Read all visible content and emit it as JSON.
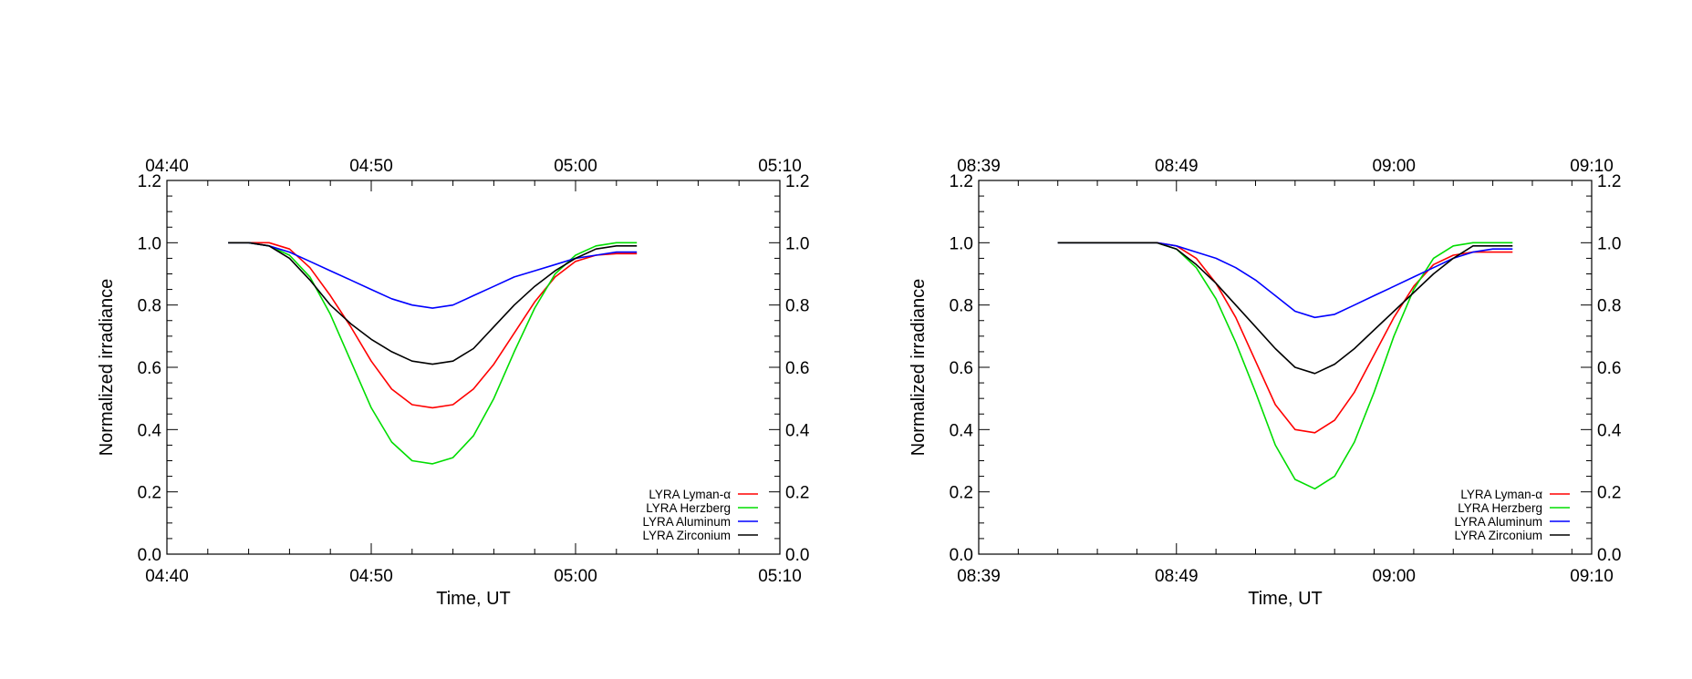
{
  "chart_data": [
    {
      "type": "line",
      "xlabel": "Time, UT",
      "ylabel": "Normalized irradiance",
      "xlim": [
        "04:40",
        "05:10"
      ],
      "ylim": [
        0.0,
        1.2
      ],
      "xticks": [
        "04:40",
        "04:50",
        "05:00",
        "05:10"
      ],
      "yticks": [
        "0.0",
        "0.2",
        "0.4",
        "0.6",
        "0.8",
        "1.0",
        "1.2"
      ],
      "legend_position": "bottom-right",
      "grid": false,
      "series": [
        {
          "name": "LYRA Lyman-α",
          "color": "#ff0000",
          "x": [
            "04:43",
            "04:44",
            "04:45",
            "04:46",
            "04:47",
            "04:48",
            "04:49",
            "04:50",
            "04:51",
            "04:52",
            "04:53",
            "04:54",
            "04:55",
            "04:56",
            "04:57",
            "04:58",
            "04:59",
            "05:00",
            "05:01",
            "05:02",
            "05:03"
          ],
          "y": [
            1.0,
            1.0,
            1.0,
            0.98,
            0.92,
            0.83,
            0.73,
            0.62,
            0.53,
            0.48,
            0.47,
            0.48,
            0.53,
            0.61,
            0.71,
            0.81,
            0.89,
            0.94,
            0.96,
            0.965,
            0.965
          ]
        },
        {
          "name": "LYRA Herzberg",
          "color": "#00dd00",
          "x": [
            "04:43",
            "04:44",
            "04:45",
            "04:46",
            "04:47",
            "04:48",
            "04:49",
            "04:50",
            "04:51",
            "04:52",
            "04:53",
            "04:54",
            "04:55",
            "04:56",
            "04:57",
            "04:58",
            "04:59",
            "05:00",
            "05:01",
            "05:02",
            "05:03"
          ],
          "y": [
            1.0,
            1.0,
            0.99,
            0.96,
            0.89,
            0.77,
            0.62,
            0.47,
            0.36,
            0.3,
            0.29,
            0.31,
            0.38,
            0.5,
            0.65,
            0.79,
            0.9,
            0.96,
            0.99,
            1.0,
            1.0
          ]
        },
        {
          "name": "LYRA Aluminum",
          "color": "#0000ff",
          "x": [
            "04:43",
            "04:44",
            "04:45",
            "04:46",
            "04:47",
            "04:48",
            "04:49",
            "04:50",
            "04:51",
            "04:52",
            "04:53",
            "04:54",
            "04:55",
            "04:56",
            "04:57",
            "04:58",
            "04:59",
            "05:00",
            "05:01",
            "05:02",
            "05:03"
          ],
          "y": [
            1.0,
            1.0,
            0.99,
            0.97,
            0.94,
            0.91,
            0.88,
            0.85,
            0.82,
            0.8,
            0.79,
            0.8,
            0.83,
            0.86,
            0.89,
            0.91,
            0.93,
            0.95,
            0.96,
            0.97,
            0.97
          ]
        },
        {
          "name": "LYRA Zirconium",
          "color": "#000000",
          "x": [
            "04:43",
            "04:44",
            "04:45",
            "04:46",
            "04:47",
            "04:48",
            "04:49",
            "04:50",
            "04:51",
            "04:52",
            "04:53",
            "04:54",
            "04:55",
            "04:56",
            "04:57",
            "04:58",
            "04:59",
            "05:00",
            "05:01",
            "05:02",
            "05:03"
          ],
          "y": [
            1.0,
            1.0,
            0.99,
            0.95,
            0.88,
            0.8,
            0.74,
            0.69,
            0.65,
            0.62,
            0.61,
            0.62,
            0.66,
            0.73,
            0.8,
            0.86,
            0.91,
            0.95,
            0.98,
            0.99,
            0.99
          ]
        }
      ]
    },
    {
      "type": "line",
      "xlabel": "Time, UT",
      "ylabel": "Normalized irradiance",
      "xlim": [
        "08:39",
        "09:10"
      ],
      "ylim": [
        0.0,
        1.2
      ],
      "xticks": [
        "08:39",
        "08:49",
        "09:00",
        "09:10"
      ],
      "yticks": [
        "0.0",
        "0.2",
        "0.4",
        "0.6",
        "0.8",
        "1.0",
        "1.2"
      ],
      "legend_position": "bottom-right",
      "grid": false,
      "series": [
        {
          "name": "LYRA Lyman-α",
          "color": "#ff0000",
          "x": [
            "08:43",
            "08:44",
            "08:45",
            "08:46",
            "08:47",
            "08:48",
            "08:49",
            "08:50",
            "08:51",
            "08:52",
            "08:53",
            "08:54",
            "08:55",
            "08:56",
            "08:57",
            "08:58",
            "08:59",
            "09:00",
            "09:01",
            "09:02",
            "09:03",
            "09:04",
            "09:05",
            "09:06"
          ],
          "y": [
            1.0,
            1.0,
            1.0,
            1.0,
            1.0,
            1.0,
            0.99,
            0.95,
            0.87,
            0.76,
            0.62,
            0.48,
            0.4,
            0.39,
            0.43,
            0.52,
            0.64,
            0.76,
            0.86,
            0.93,
            0.96,
            0.97,
            0.97,
            0.97
          ]
        },
        {
          "name": "LYRA Herzberg",
          "color": "#00dd00",
          "x": [
            "08:43",
            "08:44",
            "08:45",
            "08:46",
            "08:47",
            "08:48",
            "08:49",
            "08:50",
            "08:51",
            "08:52",
            "08:53",
            "08:54",
            "08:55",
            "08:56",
            "08:57",
            "08:58",
            "08:59",
            "09:00",
            "09:01",
            "09:02",
            "09:03",
            "09:04",
            "09:05",
            "09:06"
          ],
          "y": [
            1.0,
            1.0,
            1.0,
            1.0,
            1.0,
            1.0,
            0.98,
            0.92,
            0.82,
            0.68,
            0.52,
            0.35,
            0.24,
            0.21,
            0.25,
            0.36,
            0.52,
            0.7,
            0.85,
            0.95,
            0.99,
            1.0,
            1.0,
            1.0
          ]
        },
        {
          "name": "LYRA Aluminum",
          "color": "#0000ff",
          "x": [
            "08:43",
            "08:44",
            "08:45",
            "08:46",
            "08:47",
            "08:48",
            "08:49",
            "08:50",
            "08:51",
            "08:52",
            "08:53",
            "08:54",
            "08:55",
            "08:56",
            "08:57",
            "08:58",
            "08:59",
            "09:00",
            "09:01",
            "09:02",
            "09:03",
            "09:04",
            "09:05",
            "09:06"
          ],
          "y": [
            1.0,
            1.0,
            1.0,
            1.0,
            1.0,
            1.0,
            0.99,
            0.97,
            0.95,
            0.92,
            0.88,
            0.83,
            0.78,
            0.76,
            0.77,
            0.8,
            0.83,
            0.86,
            0.89,
            0.92,
            0.95,
            0.97,
            0.98,
            0.98
          ]
        },
        {
          "name": "LYRA Zirconium",
          "color": "#000000",
          "x": [
            "08:43",
            "08:44",
            "08:45",
            "08:46",
            "08:47",
            "08:48",
            "08:49",
            "08:50",
            "08:51",
            "08:52",
            "08:53",
            "08:54",
            "08:55",
            "08:56",
            "08:57",
            "08:58",
            "08:59",
            "09:00",
            "09:01",
            "09:02",
            "09:03",
            "09:04",
            "09:05",
            "09:06"
          ],
          "y": [
            1.0,
            1.0,
            1.0,
            1.0,
            1.0,
            1.0,
            0.98,
            0.93,
            0.87,
            0.8,
            0.73,
            0.66,
            0.6,
            0.58,
            0.61,
            0.66,
            0.72,
            0.78,
            0.84,
            0.9,
            0.95,
            0.99,
            0.99,
            0.99
          ]
        }
      ]
    }
  ]
}
